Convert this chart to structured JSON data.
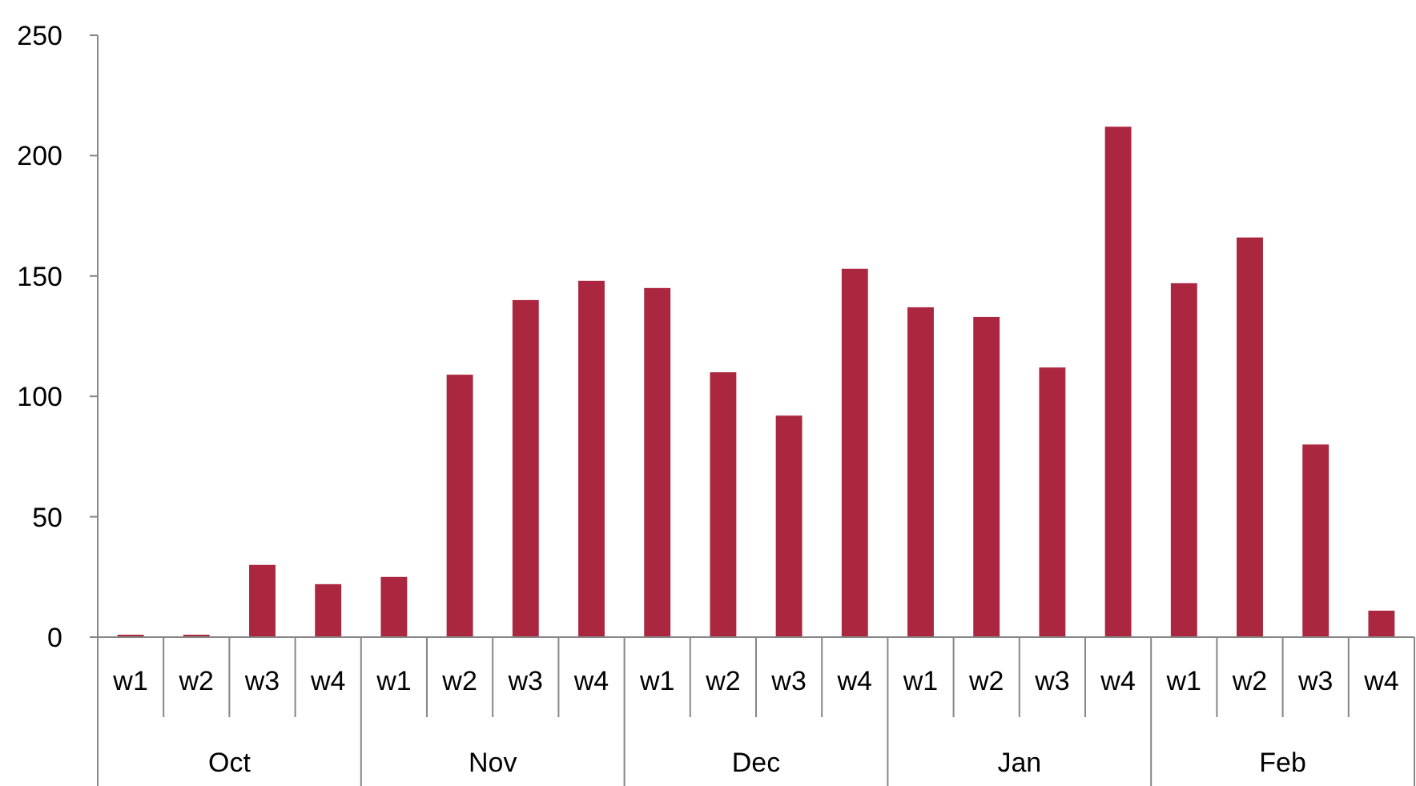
{
  "chart_data": {
    "type": "bar",
    "categories": [
      "w1",
      "w2",
      "w3",
      "w4",
      "w1",
      "w2",
      "w3",
      "w4",
      "w1",
      "w2",
      "w3",
      "w4",
      "w1",
      "w2",
      "w3",
      "w4",
      "w1",
      "w2",
      "w3",
      "w4"
    ],
    "values": [
      1,
      1,
      30,
      22,
      25,
      109,
      140,
      148,
      145,
      110,
      92,
      153,
      137,
      133,
      112,
      212,
      147,
      166,
      80,
      11
    ],
    "color": "#ab273f",
    "ylim": [
      0,
      250
    ],
    "yticks": [
      0,
      50,
      100,
      150,
      200,
      250
    ],
    "grid": false,
    "annotations": [
      "Oct",
      "Nov",
      "Dec",
      "Jan",
      "Feb"
    ]
  }
}
